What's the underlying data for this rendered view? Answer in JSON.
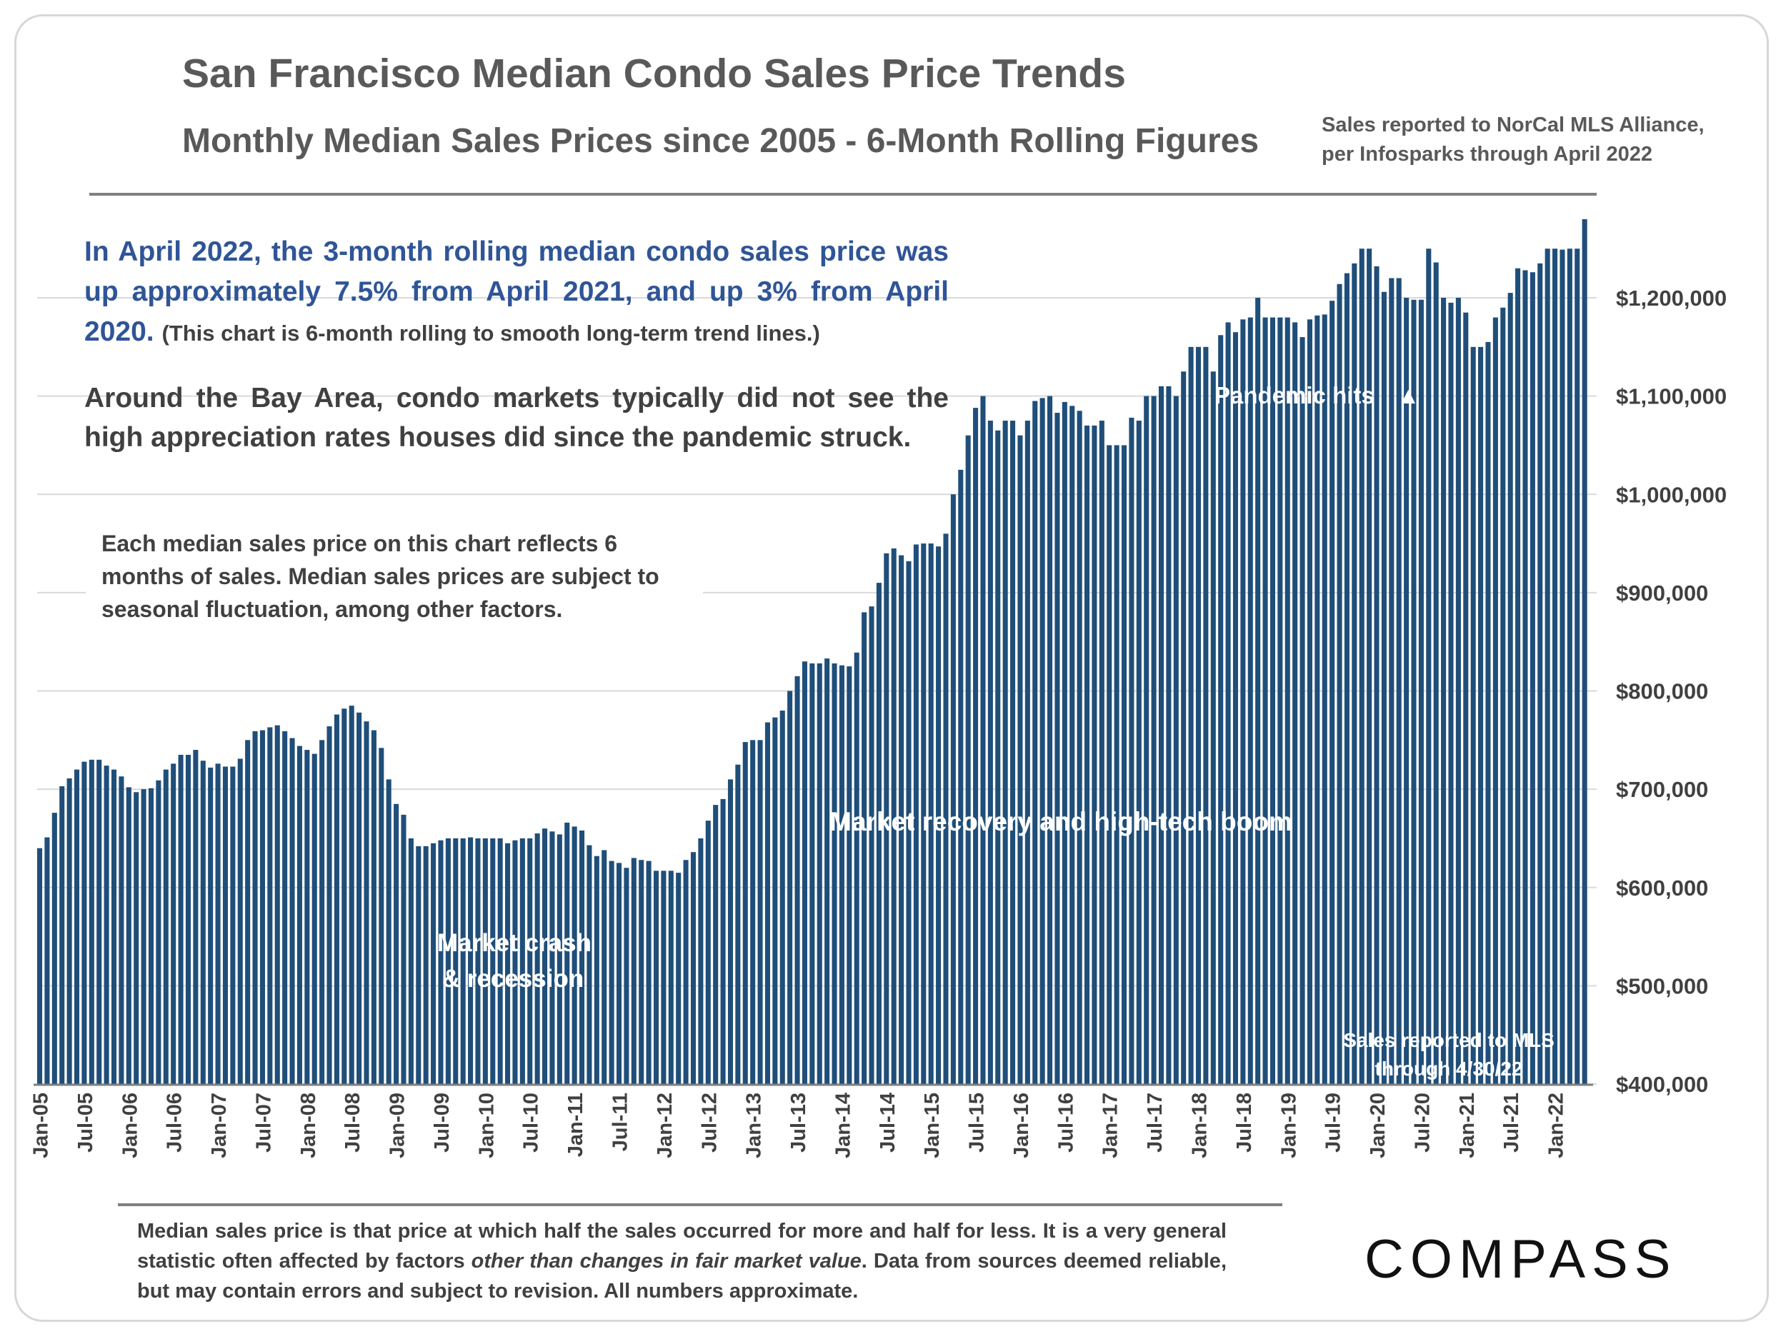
{
  "header": {
    "title": "San Francisco Median Condo Sales Price Trends",
    "subtitle": "Monthly Median Sales Prices since 2005 - 6-Month Rolling Figures",
    "source_line1": "Sales reported to NorCal MLS Alliance,",
    "source_line2": "per Infosparks through April 2022"
  },
  "commentary": {
    "headline": "In April 2022, the 3-month rolling median condo sales price was up approximately 7.5% from April 2021, and up 3% from April 2020.",
    "headline_note": "(This chart is 6-month rolling to smooth long-term trend lines.)",
    "bay_area": "Around the Bay Area, condo markets typically did not see the high appreciation rates houses did since the pandemic struck.",
    "method_note": "Each median sales price on this chart reflects 6 months of sales. Median sales prices are subject to seasonal fluctuation, among other factors."
  },
  "footer": {
    "disclaimer_pre": "Median sales price is that price at which half the sales occurred for more and half for less. It is a very general statistic often affected by factors ",
    "disclaimer_em": "other than changes in fair market value",
    "disclaimer_post": ". Data from sources deemed reliable, but may contain errors and subject to revision. All numbers approximate.",
    "logo": "COMPASS"
  },
  "colors": {
    "bar": "#1f4e79",
    "title": "#595959",
    "headline": "#2f5597",
    "body": "#404040",
    "grid": "#d9d9d9"
  },
  "chart_data": {
    "type": "bar",
    "ylim": [
      400000,
      1290000
    ],
    "grid": true,
    "y_ticks": [
      400000,
      500000,
      600000,
      700000,
      800000,
      900000,
      1000000,
      1100000,
      1200000
    ],
    "y_tick_labels": [
      "$400,000",
      "$500,000",
      "$600,000",
      "$700,000",
      "$800,000",
      "$900,000",
      "$1,000,000",
      "$1,100,000",
      "$1,200,000"
    ],
    "x_tick_labels": [
      "Jan-05",
      "Jul-05",
      "Jan-06",
      "Jul-06",
      "Jan-07",
      "Jul-07",
      "Jan-08",
      "Jul-08",
      "Jan-09",
      "Jul-09",
      "Jan-10",
      "Jul-10",
      "Jan-11",
      "Jul-11",
      "Jan-12",
      "Jul-12",
      "Jan-13",
      "Jul-13",
      "Jan-14",
      "Jul-14",
      "Jan-15",
      "Jul-15",
      "Jan-16",
      "Jul-16",
      "Jan-17",
      "Jul-17",
      "Jan-18",
      "Jul-18",
      "Jan-19",
      "Jul-19",
      "Jan-20",
      "Jul-20",
      "Jan-21",
      "Jul-21",
      "Jan-22"
    ],
    "series": [
      {
        "start": "Jan-05",
        "end": "Apr-22",
        "values": [
          640000,
          651000,
          676000,
          703000,
          711000,
          720000,
          728000,
          730000,
          730000,
          724000,
          720000,
          713000,
          702000,
          697000,
          700000,
          701000,
          709000,
          720000,
          726000,
          735000,
          735000,
          740000,
          729000,
          722000,
          726000,
          723000,
          723000,
          731000,
          750000,
          759000,
          760000,
          763000,
          765000,
          759000,
          752000,
          744000,
          740000,
          736000,
          750000,
          764000,
          776000,
          782000,
          785000,
          778000,
          769000,
          760000,
          742000,
          710000,
          685000,
          674000,
          650000,
          642000,
          642000,
          645000,
          648000,
          650000,
          650000,
          650000,
          651000,
          650000,
          650000,
          650000,
          650000,
          645000,
          648000,
          650000,
          650000,
          655000,
          660000,
          657000,
          654000,
          666000,
          662000,
          658000,
          643000,
          632000,
          638000,
          627000,
          625000,
          620000,
          630000,
          628000,
          627000,
          617000,
          617000,
          617000,
          615000,
          628000,
          636000,
          650000,
          668000,
          684000,
          690000,
          710000,
          725000,
          748000,
          750000,
          750000,
          768000,
          773000,
          780000,
          800000,
          815000,
          830000,
          828000,
          828000,
          833000,
          828000,
          826000,
          825000,
          839000,
          880000,
          886000,
          910000,
          940000,
          945000,
          938000,
          932000,
          949000,
          950000,
          950000,
          947000,
          960000,
          1000000,
          1025000,
          1060000,
          1088000,
          1100000,
          1075000,
          1065000,
          1075000,
          1075000,
          1060000,
          1075000,
          1095000,
          1098000,
          1100000,
          1083000,
          1094000,
          1090000,
          1085000,
          1070000,
          1070000,
          1075000,
          1050000,
          1050000,
          1050000,
          1078000,
          1075000,
          1100000,
          1100000,
          1110000,
          1110000,
          1100000,
          1125000,
          1150000,
          1150000,
          1150000,
          1125000,
          1162000,
          1175000,
          1165000,
          1178000,
          1180000,
          1200000,
          1180000,
          1180000,
          1180000,
          1180000,
          1175000,
          1160000,
          1178000,
          1182000,
          1183000,
          1197000,
          1214000,
          1225000,
          1235000,
          1250000,
          1250000,
          1232000,
          1206000,
          1220000,
          1220000,
          1200000,
          1198000,
          1198000,
          1250000,
          1236000,
          1200000,
          1195000,
          1200000,
          1185000,
          1150000,
          1150000,
          1155000,
          1180000,
          1190000,
          1205000,
          1230000,
          1228000,
          1226000,
          1235000,
          1250000,
          1250000,
          1249000,
          1250000,
          1250000,
          1280000
        ]
      }
    ],
    "annotations": [
      {
        "text": "Market crash",
        "text2": "& recession",
        "at_month": 50
      },
      {
        "text": "Market  recovery and high-tech boom",
        "at_month": 107
      },
      {
        "text": "Pandemic hits",
        "arrow": "▲",
        "at_month": 182
      },
      {
        "text": "Sales reported to MLS",
        "text2": "through 4/30/22",
        "at_month": 206
      }
    ]
  }
}
